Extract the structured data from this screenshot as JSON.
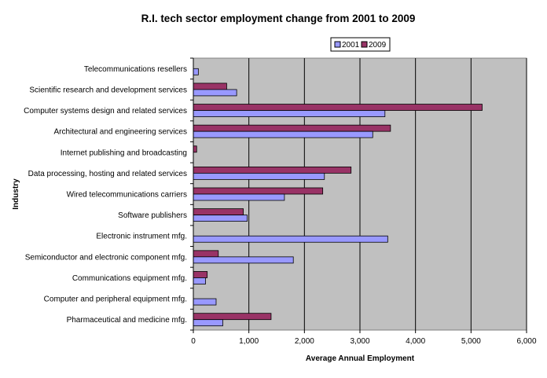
{
  "chart_data": {
    "type": "bar",
    "orientation": "horizontal",
    "title": "R.I. tech sector employment change from 2001 to 2009",
    "xlabel": "Average Annual Employment",
    "ylabel": "Industry",
    "xlim": [
      0,
      6000
    ],
    "xticks": [
      0,
      1000,
      2000,
      3000,
      4000,
      5000,
      6000
    ],
    "xtick_labels": [
      "0",
      "1,000",
      "2,000",
      "3,000",
      "4,000",
      "5,000",
      "6,000"
    ],
    "grid": "vertical",
    "legend_position": "top-right",
    "categories": [
      "Telecommunications resellers",
      "Scientific research and development services",
      "Computer systems design and related services",
      "Architectural and engineering services",
      "Internet publishing and broadcasting",
      "Data processing, hosting and related services",
      "Wired telecommunications carriers",
      "Software publishers",
      "Electronic instrument mfg.",
      "Semiconductor and electronic component mfg.",
      "Communications equipment mfg.",
      "Computer and peripheral equipment mfg.",
      "Pharmaceutical and medicine mfg."
    ],
    "series": [
      {
        "name": "2001",
        "color": "#9999ff",
        "values": [
          90,
          780,
          3450,
          3230,
          0,
          2360,
          1640,
          970,
          3500,
          1800,
          220,
          410,
          530
        ]
      },
      {
        "name": "2009",
        "color": "#993366",
        "values": [
          0,
          600,
          5200,
          3550,
          60,
          2840,
          2330,
          900,
          0,
          450,
          250,
          0,
          1400
        ]
      }
    ],
    "plot_background": "#c0c0c0"
  }
}
